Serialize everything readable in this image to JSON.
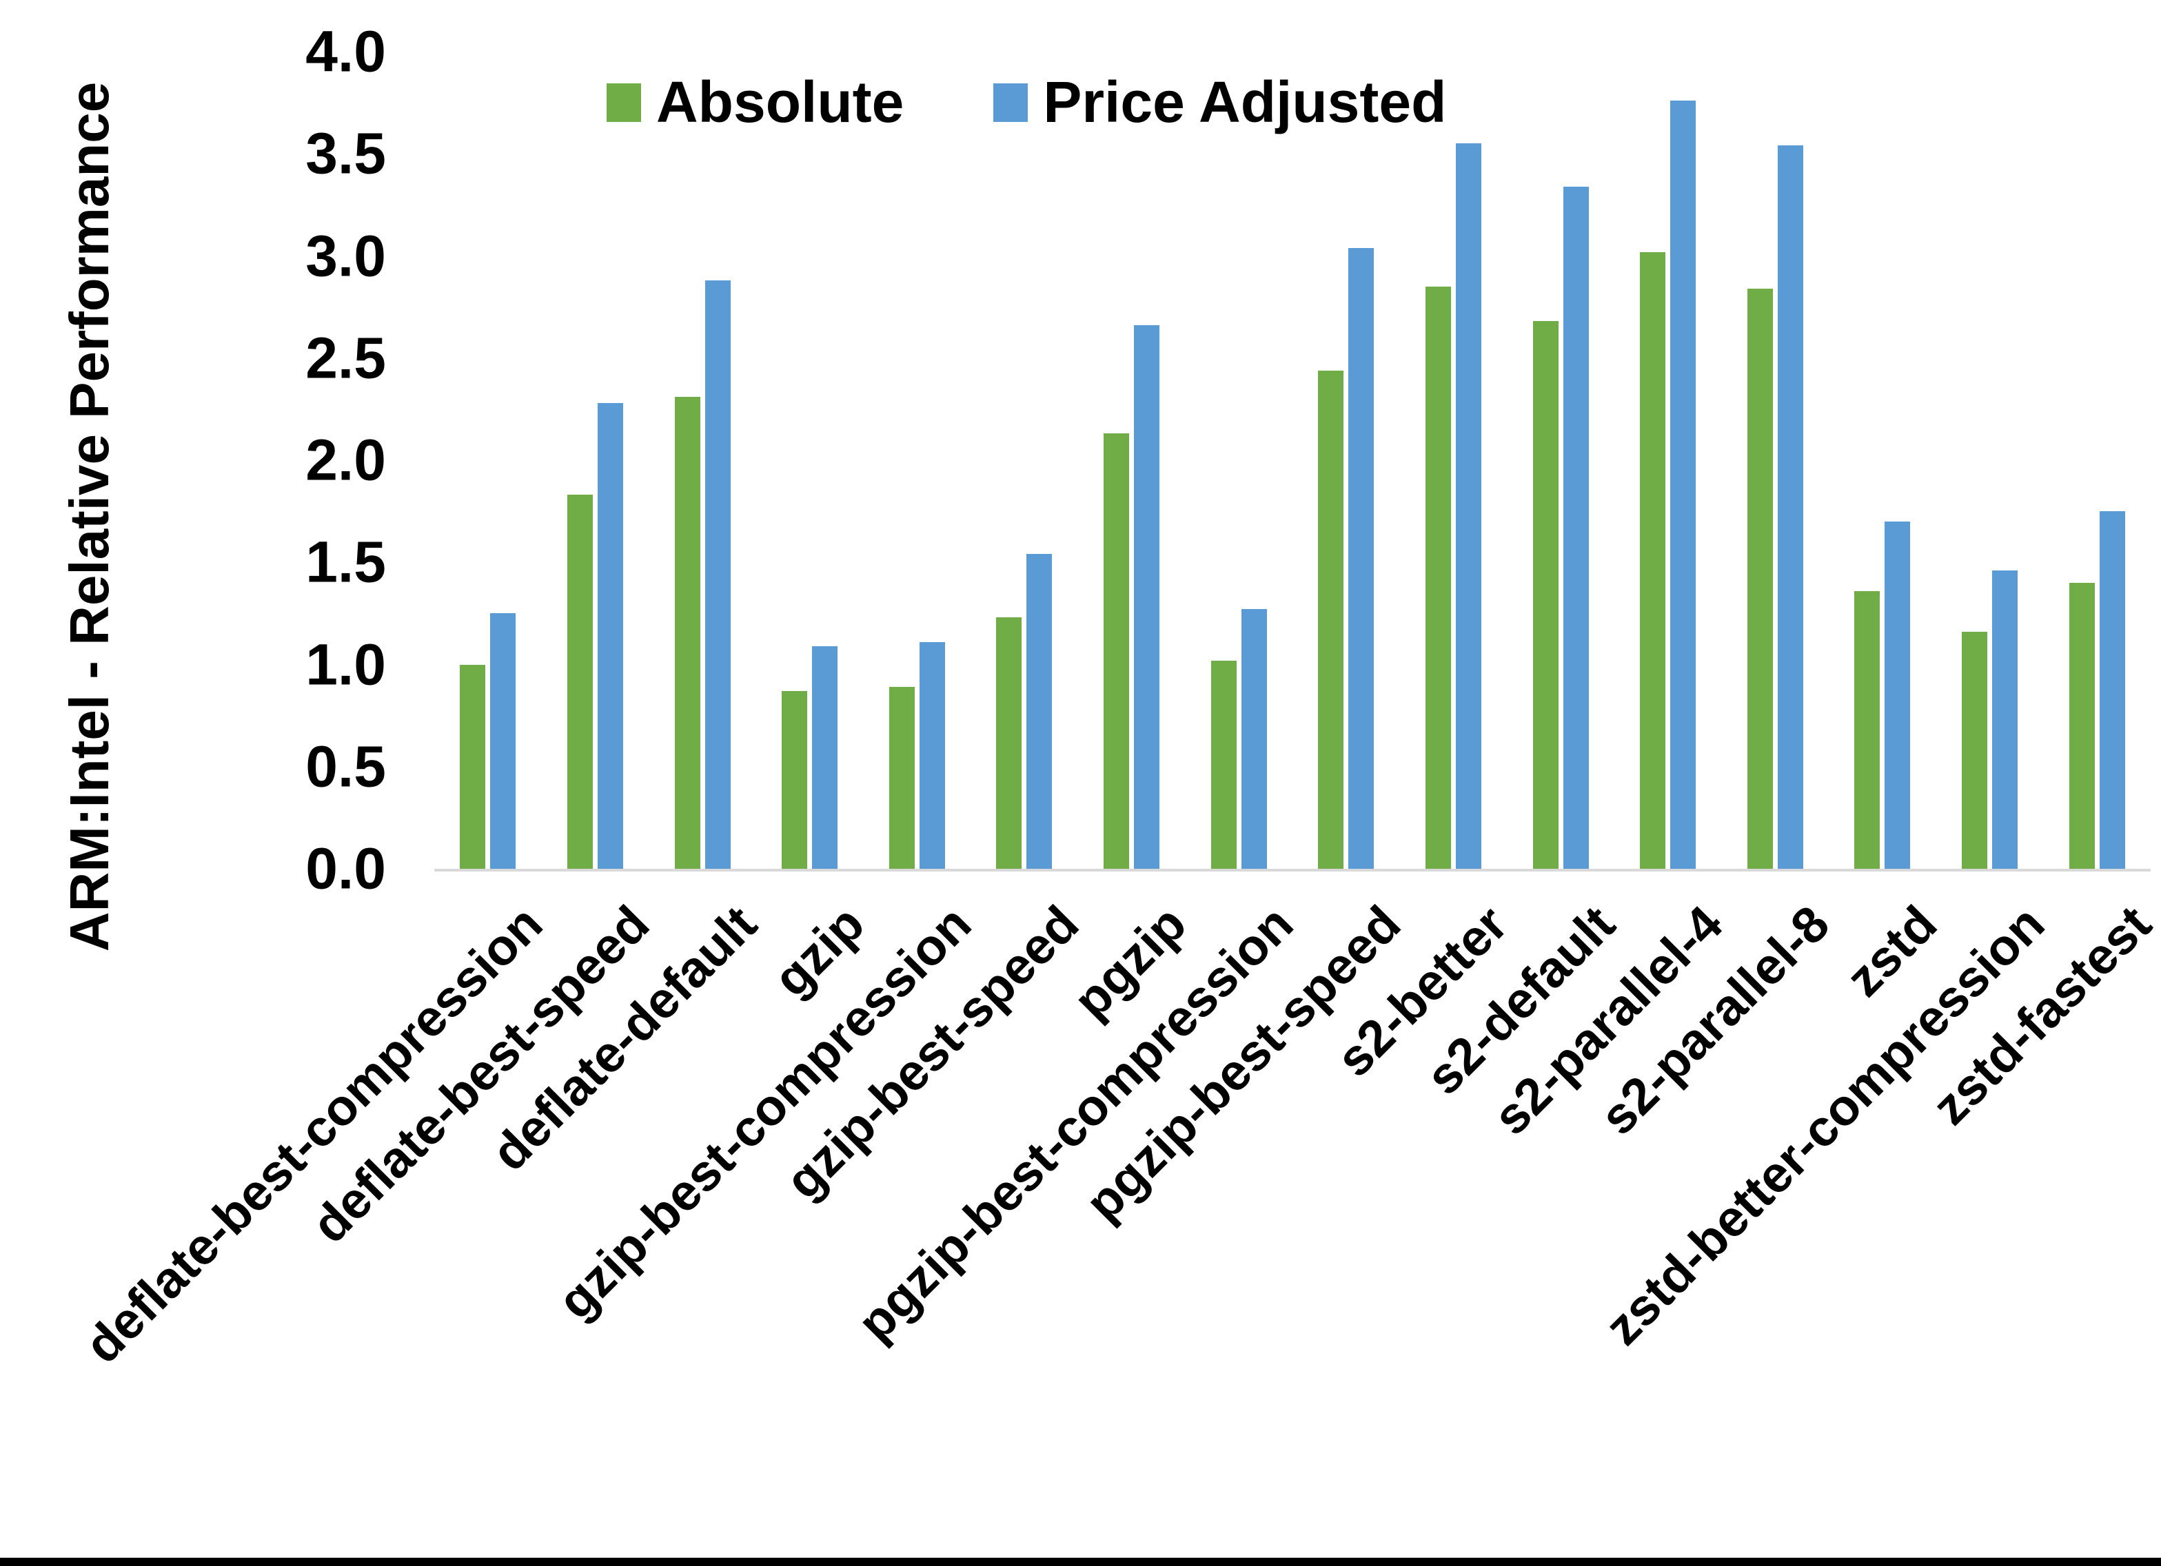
{
  "chart_data": {
    "type": "bar",
    "title": "",
    "xlabel": "",
    "ylabel": "ARM:Intel - Relative Performance",
    "ylim": [
      0.0,
      4.0
    ],
    "ytick_step": 0.5,
    "ytick_format_decimals": 1,
    "grid": false,
    "legend_position": "top-center",
    "categories": [
      "deflate-best-compression",
      "deflate-best-speed",
      "deflate-default",
      "gzip",
      "gzip-best-compression",
      "gzip-best-speed",
      "pgzip",
      "pgzip-best-compression",
      "pgzip-best-speed",
      "s2-better",
      "s2-default",
      "s2-parallel-4",
      "s2-parallel-8",
      "zstd",
      "zstd-better-compression",
      "zstd-fastest"
    ],
    "series": [
      {
        "name": "Absolute",
        "color": "#70AD47",
        "values": [
          1.0,
          1.83,
          2.31,
          0.87,
          0.89,
          1.23,
          2.13,
          1.02,
          2.44,
          2.85,
          2.68,
          3.02,
          2.84,
          1.36,
          1.16,
          1.4
        ]
      },
      {
        "name": "Price Adjusted",
        "color": "#5B9BD5",
        "values": [
          1.25,
          2.28,
          2.88,
          1.09,
          1.11,
          1.54,
          2.66,
          1.27,
          3.04,
          3.55,
          3.34,
          3.76,
          3.54,
          1.7,
          1.46,
          1.75
        ]
      }
    ]
  },
  "colors": {
    "absolute_green": "#70AD47",
    "price_adjusted_blue": "#5B9BD5",
    "axis_line": "#D9D9D9",
    "text": "#000000",
    "bottom_border": "#000000"
  }
}
